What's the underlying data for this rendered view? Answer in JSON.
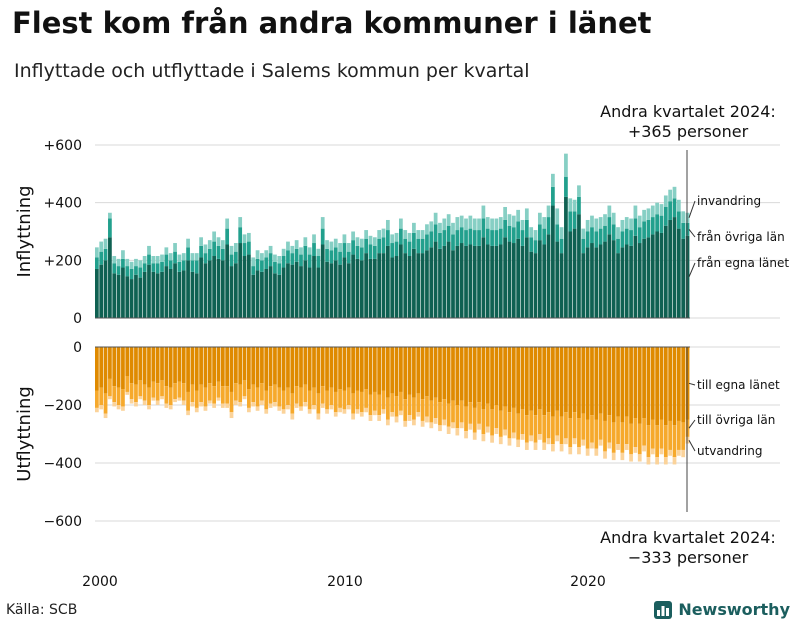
{
  "title": "Flest kom från andra kommuner i länet",
  "subtitle": "Inflyttade och utflyttade i Salems kommun per kvartal",
  "source": "Källa: SCB",
  "brand": "Newsworthy",
  "colors": {
    "in_egna": "#0f6152",
    "in_ovriga": "#22a08d",
    "in_invandring": "#86cfc4",
    "ut_egna": "#df8a00",
    "ut_ovriga": "#f6a92c",
    "ut_utvandring": "#fbd39a",
    "brand": "#1b5e5e"
  },
  "chart_data": {
    "type": "bar",
    "stacked": true,
    "start": "2000 Q1",
    "x_tick_labels": [
      "2000",
      "2010",
      "2020"
    ],
    "panels": [
      {
        "name": "inflyttning",
        "ylabel": "Inflyttning",
        "ylim": [
          0,
          620
        ],
        "y_ticks": [
          0,
          200,
          400,
          600
        ],
        "y_tick_labels": [
          "0",
          "+200",
          "+400",
          "+600"
        ],
        "annotation_line1": "Andra kvartalet 2024:",
        "annotation_line2": "+365 personer",
        "series": [
          {
            "name": "från egna länet",
            "color_key": "in_egna",
            "values": [
              170,
              185,
              200,
              280,
              155,
              150,
              175,
              145,
              135,
              150,
              140,
              160,
              185,
              160,
              155,
              160,
              180,
              170,
              190,
              160,
              165,
              200,
              160,
              155,
              210,
              190,
              200,
              215,
              205,
              200,
              255,
              180,
              190,
              260,
              215,
              220,
              150,
              165,
              160,
              170,
              180,
              155,
              150,
              175,
              190,
              185,
              195,
              180,
              200,
              175,
              215,
              175,
              255,
              195,
              190,
              200,
              185,
              210,
              190,
              220,
              205,
              200,
              225,
              205,
              205,
              225,
              225,
              250,
              210,
              215,
              255,
              225,
              215,
              240,
              225,
              225,
              235,
              245,
              265,
              240,
              250,
              265,
              235,
              250,
              260,
              250,
              255,
              250,
              250,
              280,
              255,
              250,
              250,
              255,
              280,
              265,
              260,
              275,
              250,
              280,
              230,
              225,
              270,
              255,
              290,
              390,
              265,
              225,
              420,
              300,
              310,
              360,
              225,
              245,
              260,
              245,
              255,
              265,
              290,
              270,
              225,
              245,
              255,
              250,
              285,
              260,
              275,
              280,
              290,
              300,
              295,
              320,
              340,
              350,
              310,
              275,
              285
            ]
          },
          {
            "name": "från övriga län",
            "color_key": "in_ovriga",
            "values": [
              40,
              45,
              40,
              65,
              35,
              30,
              30,
              35,
              35,
              30,
              35,
              30,
              35,
              30,
              35,
              35,
              40,
              30,
              40,
              35,
              35,
              45,
              40,
              45,
              40,
              35,
              40,
              50,
              45,
              40,
              55,
              40,
              40,
              55,
              45,
              45,
              30,
              40,
              40,
              40,
              45,
              40,
              40,
              40,
              45,
              40,
              45,
              40,
              50,
              45,
              45,
              40,
              55,
              45,
              45,
              45,
              45,
              50,
              40,
              50,
              45,
              45,
              50,
              50,
              45,
              50,
              55,
              55,
              50,
              50,
              55,
              50,
              50,
              55,
              50,
              50,
              55,
              55,
              60,
              55,
              55,
              55,
              55,
              55,
              55,
              55,
              55,
              55,
              55,
              65,
              55,
              55,
              55,
              55,
              60,
              55,
              55,
              60,
              55,
              60,
              50,
              45,
              55,
              55,
              60,
              65,
              60,
              50,
              70,
              70,
              60,
              60,
              50,
              55,
              55,
              55,
              55,
              55,
              60,
              55,
              50,
              55,
              55,
              55,
              60,
              55,
              60,
              60,
              60,
              60,
              60,
              65,
              65,
              65,
              60,
              55,
              45
            ]
          },
          {
            "name": "invandring",
            "color_key": "in_invandring",
            "values": [
              35,
              35,
              35,
              20,
              25,
              25,
              30,
              25,
              25,
              25,
              25,
              25,
              30,
              25,
              25,
              25,
              25,
              25,
              30,
              25,
              25,
              30,
              25,
              25,
              30,
              30,
              30,
              35,
              30,
              30,
              35,
              30,
              30,
              35,
              30,
              30,
              30,
              30,
              25,
              25,
              25,
              25,
              25,
              25,
              30,
              25,
              30,
              25,
              30,
              25,
              30,
              25,
              40,
              30,
              30,
              30,
              30,
              30,
              30,
              30,
              30,
              30,
              30,
              30,
              30,
              30,
              30,
              35,
              30,
              30,
              35,
              30,
              30,
              35,
              30,
              30,
              35,
              35,
              40,
              35,
              40,
              40,
              40,
              45,
              40,
              40,
              45,
              40,
              40,
              45,
              40,
              40,
              40,
              40,
              45,
              40,
              40,
              40,
              35,
              40,
              35,
              35,
              40,
              40,
              40,
              45,
              55,
              40,
              80,
              45,
              40,
              40,
              35,
              40,
              40,
              45,
              40,
              40,
              40,
              40,
              40,
              40,
              40,
              40,
              45,
              40,
              40,
              40,
              40,
              40,
              40,
              40,
              40,
              40,
              40,
              40,
              35
            ]
          }
        ]
      },
      {
        "name": "utflyttning",
        "ylabel": "Utflyttning",
        "ylim": [
          -620,
          0
        ],
        "y_ticks": [
          0,
          -200,
          -400,
          -600
        ],
        "y_tick_labels": [
          "0",
          "−200",
          "−400",
          "−600"
        ],
        "annotation_line1": "Andra kvartalet 2024:",
        "annotation_line2": "−333 personer",
        "series": [
          {
            "name": "till egna länet",
            "color_key": "ut_egna",
            "values": [
              -150,
              -140,
              -160,
              -110,
              -135,
              -140,
              -145,
              -100,
              -125,
              -130,
              -115,
              -130,
              -140,
              -120,
              -125,
              -115,
              -135,
              -140,
              -125,
              -120,
              -125,
              -155,
              -130,
              -150,
              -130,
              -140,
              -125,
              -135,
              -120,
              -135,
              -135,
              -155,
              -125,
              -130,
              -115,
              -145,
              -130,
              -140,
              -125,
              -150,
              -135,
              -130,
              -140,
              -150,
              -140,
              -160,
              -135,
              -140,
              -130,
              -150,
              -140,
              -160,
              -135,
              -150,
              -140,
              -155,
              -145,
              -150,
              -140,
              -160,
              -150,
              -155,
              -145,
              -165,
              -155,
              -165,
              -150,
              -175,
              -160,
              -170,
              -155,
              -180,
              -165,
              -175,
              -160,
              -180,
              -170,
              -185,
              -175,
              -190,
              -180,
              -195,
              -185,
              -200,
              -185,
              -205,
              -190,
              -210,
              -190,
              -215,
              -195,
              -215,
              -200,
              -220,
              -205,
              -225,
              -210,
              -230,
              -215,
              -235,
              -220,
              -235,
              -215,
              -235,
              -225,
              -240,
              -220,
              -240,
              -225,
              -245,
              -225,
              -245,
              -230,
              -250,
              -235,
              -250,
              -230,
              -255,
              -235,
              -260,
              -240,
              -260,
              -240,
              -265,
              -245,
              -265,
              -245,
              -270,
              -250,
              -270,
              -250,
              -270,
              -255,
              -270,
              -255,
              -260,
              -250
            ]
          },
          {
            "name": "till övriga län",
            "color_key": "ut_ovriga",
            "values": [
              -60,
              -60,
              -70,
              -60,
              -55,
              -60,
              -60,
              -55,
              -55,
              -60,
              -55,
              -55,
              -60,
              -55,
              -60,
              -55,
              -60,
              -60,
              -55,
              -55,
              -60,
              -65,
              -60,
              -60,
              -60,
              -65,
              -60,
              -60,
              -55,
              -60,
              -60,
              -70,
              -60,
              -60,
              -55,
              -65,
              -60,
              -65,
              -60,
              -65,
              -60,
              -60,
              -65,
              -65,
              -60,
              -70,
              -60,
              -65,
              -60,
              -65,
              -60,
              -70,
              -60,
              -65,
              -60,
              -70,
              -65,
              -65,
              -60,
              -70,
              -65,
              -70,
              -65,
              -70,
              -65,
              -70,
              -65,
              -75,
              -65,
              -70,
              -65,
              -75,
              -70,
              -75,
              -65,
              -75,
              -70,
              -75,
              -70,
              -80,
              -70,
              -80,
              -75,
              -80,
              -75,
              -85,
              -75,
              -85,
              -75,
              -85,
              -80,
              -90,
              -80,
              -90,
              -80,
              -90,
              -85,
              -90,
              -85,
              -95,
              -85,
              -95,
              -85,
              -95,
              -90,
              -95,
              -85,
              -95,
              -90,
              -100,
              -90,
              -100,
              -90,
              -100,
              -95,
              -100,
              -90,
              -105,
              -95,
              -105,
              -95,
              -105,
              -95,
              -105,
              -100,
              -105,
              -95,
              -110,
              -100,
              -110,
              -100,
              -110,
              -100,
              -110,
              -100,
              -95,
              -60
            ]
          },
          {
            "name": "utvandring",
            "color_key": "ut_utvandring",
            "values": [
              -15,
              -15,
              -15,
              -10,
              -15,
              -15,
              -15,
              -10,
              -15,
              -15,
              -10,
              -15,
              -15,
              -10,
              -15,
              -10,
              -15,
              -15,
              -10,
              -10,
              -15,
              -15,
              -15,
              -15,
              -15,
              -15,
              -10,
              -15,
              -10,
              -15,
              -15,
              -20,
              -15,
              -15,
              -10,
              -15,
              -15,
              -15,
              -15,
              -15,
              -15,
              -15,
              -15,
              -15,
              -15,
              -20,
              -15,
              -15,
              -15,
              -15,
              -15,
              -20,
              -15,
              -15,
              -15,
              -15,
              -15,
              -15,
              -15,
              -20,
              -15,
              -15,
              -15,
              -20,
              -15,
              -20,
              -15,
              -20,
              -15,
              -20,
              -15,
              -20,
              -20,
              -20,
              -15,
              -20,
              -20,
              -20,
              -20,
              -20,
              -20,
              -25,
              -20,
              -25,
              -20,
              -25,
              -20,
              -25,
              -20,
              -25,
              -20,
              -25,
              -20,
              -25,
              -20,
              -25,
              -20,
              -25,
              -20,
              -25,
              -20,
              -25,
              -20,
              -25,
              -20,
              -25,
              -20,
              -25,
              -20,
              -25,
              -20,
              -25,
              -20,
              -25,
              -20,
              -25,
              -20,
              -25,
              -20,
              -25,
              -20,
              -25,
              -20,
              -25,
              -20,
              -25,
              -20,
              -25,
              -20,
              -25,
              -20,
              -25,
              -20,
              -25,
              -20,
              -25,
              -23
            ]
          }
        ]
      }
    ]
  }
}
